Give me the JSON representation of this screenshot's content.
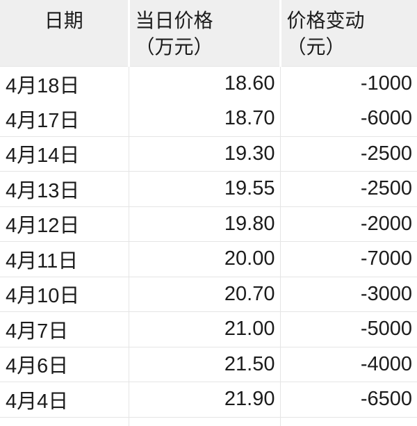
{
  "colors": {
    "header_background": "#efefef",
    "header_separator": "#ffffff",
    "grid_border": "#e5e5e5",
    "text": "#1b1b1b",
    "body_background": "#ffffff"
  },
  "table": {
    "header": {
      "date": {
        "line1": "日期",
        "line2": ""
      },
      "price": {
        "line1": "当日价格",
        "line2": "（万元）"
      },
      "change": {
        "line1": "价格变动",
        "line2": "（元）"
      }
    },
    "rows": [
      {
        "date": "4月18日",
        "price": "18.60",
        "change": "-1000"
      },
      {
        "date": "4月17日",
        "price": "18.70",
        "change": "-6000"
      },
      {
        "date": "4月14日",
        "price": "19.30",
        "change": "-2500"
      },
      {
        "date": "4月13日",
        "price": "19.55",
        "change": "-2500"
      },
      {
        "date": "4月12日",
        "price": "19.80",
        "change": "-2000"
      },
      {
        "date": "4月11日",
        "price": "20.00",
        "change": "-7000"
      },
      {
        "date": "4月10日",
        "price": "20.70",
        "change": "-3000"
      },
      {
        "date": "4月7日",
        "price": "21.00",
        "change": "-5000"
      },
      {
        "date": "4月6日",
        "price": "21.50",
        "change": "-4000"
      },
      {
        "date": "4月4日",
        "price": "21.90",
        "change": "-6500"
      }
    ]
  },
  "chart_data": {
    "type": "table",
    "title": "",
    "columns": [
      "日期",
      "当日价格（万元）",
      "价格变动（元）"
    ],
    "rows": [
      [
        "4月18日",
        18.6,
        -1000
      ],
      [
        "4月17日",
        18.7,
        -6000
      ],
      [
        "4月14日",
        19.3,
        -2500
      ],
      [
        "4月13日",
        19.55,
        -2500
      ],
      [
        "4月12日",
        19.8,
        -2000
      ],
      [
        "4月11日",
        20.0,
        -7000
      ],
      [
        "4月10日",
        20.7,
        -3000
      ],
      [
        "4月7日",
        21.0,
        -5000
      ],
      [
        "4月6日",
        21.5,
        -4000
      ],
      [
        "4月4日",
        21.9,
        -6500
      ]
    ],
    "notes": "Daily price in 万元 (10k CNY), daily change in 元 (CNY); all changes negative (declining price series)."
  }
}
